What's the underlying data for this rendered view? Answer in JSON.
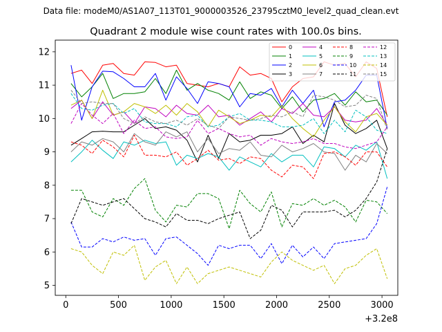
{
  "chart_data": {
    "type": "line",
    "suptitle": "Data file: modeM0/AS1A07_113T01_9000003526_23795cztM0_level2_quad_clean.evt",
    "title": "Quadrant 2 module wise count rates with 100.0s bins.",
    "xlabel": "",
    "ylabel": "",
    "x_offset_label": "+3.2e8",
    "xlim": [
      -100,
      3150
    ],
    "ylim": [
      4.7,
      12.35
    ],
    "x_ticks": [
      0,
      500,
      1000,
      1500,
      2000,
      2500,
      3000
    ],
    "y_ticks": [
      5,
      6,
      7,
      8,
      9,
      10,
      11,
      12
    ],
    "x": [
      50,
      150,
      250,
      350,
      450,
      550,
      650,
      750,
      850,
      950,
      1050,
      1150,
      1250,
      1350,
      1450,
      1550,
      1650,
      1750,
      1850,
      1950,
      2050,
      2150,
      2250,
      2350,
      2450,
      2550,
      2650,
      2750,
      2850,
      2950,
      3050
    ],
    "series": [
      {
        "name": "0",
        "color": "#ff0000",
        "dash": "solid",
        "values": [
          11.35,
          11.45,
          11.05,
          11.6,
          11.65,
          11.35,
          11.3,
          11.7,
          11.68,
          11.55,
          11.6,
          11.05,
          11.0,
          10.95,
          11.05,
          10.95,
          11.55,
          11.3,
          11.35,
          11.2,
          10.5,
          10.95,
          11.2,
          11.25,
          11.7,
          11.6,
          11.65,
          11.25,
          11.7,
          11.5,
          10.05
        ]
      },
      {
        "name": "1",
        "color": "#008000",
        "dash": "solid",
        "values": [
          11.05,
          10.65,
          10.95,
          11.35,
          10.6,
          10.75,
          10.75,
          10.8,
          11.2,
          10.75,
          11.45,
          10.85,
          11.05,
          10.85,
          10.75,
          10.55,
          11.1,
          10.6,
          10.8,
          10.7,
          10.3,
          10.65,
          10.2,
          10.55,
          10.6,
          10.75,
          10.4,
          10.8,
          10.5,
          10.55,
          10.1
        ]
      },
      {
        "name": "2",
        "color": "#0000ff",
        "dash": "solid",
        "values": [
          11.6,
          9.95,
          10.95,
          11.42,
          11.4,
          11.2,
          10.95,
          10.95,
          11.35,
          10.55,
          11.25,
          10.9,
          10.45,
          11.1,
          11.05,
          10.95,
          10.35,
          10.75,
          10.7,
          10.9,
          10.35,
          10.85,
          10.45,
          10.85,
          9.75,
          10.5,
          10.55,
          10.85,
          11.3,
          11.3,
          9.7
        ]
      },
      {
        "name": "3",
        "color": "#000000",
        "dash": "solid",
        "values": [
          9.2,
          9.4,
          9.6,
          9.62,
          9.6,
          9.6,
          9.8,
          10.0,
          9.7,
          9.75,
          9.65,
          9.35,
          8.7,
          9.5,
          8.8,
          9.55,
          9.3,
          9.35,
          9.5,
          9.5,
          9.55,
          9.75,
          9.25,
          9.5,
          9.3,
          10.45,
          9.8,
          9.55,
          9.7,
          9.95,
          9.1
        ]
      },
      {
        "name": "4",
        "color": "#bf00bf",
        "dash": "solid",
        "values": [
          10.3,
          10.55,
          10.0,
          10.5,
          10.1,
          10.2,
          9.85,
          10.35,
          10.3,
          10.05,
          10.4,
          10.15,
          10.1,
          10.4,
          10.05,
          10.1,
          9.8,
          10.0,
          10.2,
          9.9,
          10.3,
          10.15,
          10.45,
          10.1,
          10.05,
          10.35,
          9.95,
          9.9,
          9.95,
          10.3,
          9.8
        ]
      },
      {
        "name": "5",
        "color": "#00bfbf",
        "dash": "solid",
        "values": [
          8.7,
          9.0,
          9.35,
          9.05,
          8.8,
          9.3,
          9.2,
          9.35,
          9.25,
          9.3,
          8.6,
          8.9,
          8.8,
          8.95,
          8.85,
          8.45,
          8.85,
          8.7,
          8.55,
          8.95,
          8.7,
          8.9,
          8.9,
          8.55,
          9.15,
          9.1,
          8.85,
          9.2,
          9.05,
          9.3,
          8.2
        ]
      },
      {
        "name": "6",
        "color": "#bfbf00",
        "dash": "solid",
        "values": [
          10.4,
          10.55,
          10.0,
          10.85,
          10.1,
          10.2,
          10.45,
          10.35,
          10.15,
          10.4,
          10.1,
          10.45,
          10.2,
          9.75,
          10.25,
          10.05,
          9.85,
          9.95,
          10.1,
          10.05,
          10.4,
          10.0,
          9.7,
          9.45,
          9.95,
          10.35,
          9.9,
          9.6,
          10.05,
          10.15,
          9.8
        ]
      },
      {
        "name": "7",
        "color": "#808080",
        "dash": "solid",
        "values": [
          9.0,
          9.3,
          9.2,
          9.4,
          9.3,
          9.0,
          9.55,
          9.3,
          9.2,
          9.6,
          9.45,
          9.6,
          9.0,
          9.4,
          8.95,
          9.1,
          9.05,
          9.3,
          8.9,
          8.85,
          9.2,
          9.0,
          9.1,
          9.25,
          9.0,
          8.95,
          8.45,
          8.9,
          8.7,
          9.25,
          8.95
        ]
      },
      {
        "name": "8",
        "color": "#ff0000",
        "dash": "dashed",
        "values": [
          9.3,
          9.2,
          8.95,
          9.35,
          9.15,
          8.85,
          9.5,
          8.9,
          8.9,
          8.85,
          9.0,
          8.6,
          8.8,
          9.05,
          8.75,
          8.8,
          8.65,
          8.85,
          8.8,
          8.45,
          8.25,
          8.6,
          8.55,
          8.2,
          8.95,
          9.0,
          8.85,
          8.6,
          9.0,
          9.0,
          8.55
        ]
      },
      {
        "name": "9",
        "color": "#008000",
        "dash": "dashed",
        "values": [
          7.85,
          7.85,
          7.2,
          7.05,
          7.6,
          7.4,
          7.9,
          8.2,
          7.25,
          6.9,
          7.4,
          7.35,
          7.75,
          7.75,
          7.6,
          6.7,
          7.85,
          7.45,
          7.2,
          7.8,
          6.75,
          7.45,
          7.4,
          7.6,
          7.4,
          7.55,
          7.35,
          6.9,
          7.55,
          7.5,
          7.15
        ]
      },
      {
        "name": "10",
        "color": "#0000ff",
        "dash": "dashed",
        "values": [
          6.9,
          6.15,
          6.15,
          6.4,
          6.3,
          6.45,
          6.35,
          6.4,
          5.9,
          6.4,
          6.45,
          6.2,
          5.95,
          5.6,
          6.2,
          6.1,
          6.2,
          6.2,
          5.8,
          6.25,
          5.65,
          6.2,
          5.85,
          6.15,
          5.8,
          6.25,
          6.3,
          6.35,
          6.4,
          6.85,
          7.95
        ]
      },
      {
        "name": "11",
        "color": "#000000",
        "dash": "dashed",
        "values": [
          6.85,
          7.6,
          7.5,
          7.4,
          7.5,
          7.6,
          7.3,
          7.0,
          6.9,
          6.75,
          7.15,
          6.95,
          6.95,
          6.85,
          7.0,
          7.1,
          7.2,
          6.4,
          6.65,
          7.4,
          7.25,
          6.75,
          7.2,
          7.2,
          7.2,
          7.25,
          7.05,
          7.25,
          7.6,
          8.1,
          9.1
        ]
      },
      {
        "name": "12",
        "color": "#bf00bf",
        "dash": "dashed",
        "values": [
          9.85,
          10.45,
          10.1,
          9.85,
          10.15,
          9.55,
          9.95,
          9.7,
          9.75,
          9.45,
          9.4,
          9.45,
          9.95,
          9.55,
          9.7,
          9.55,
          9.45,
          9.5,
          9.2,
          9.4,
          9.3,
          9.25,
          9.3,
          9.4,
          9.25,
          9.25,
          9.15,
          9.1,
          9.2,
          9.3,
          9.75
        ]
      },
      {
        "name": "13",
        "color": "#00bfbf",
        "dash": "dashed",
        "values": [
          10.75,
          10.3,
          10.25,
          10.4,
          10.45,
          10.15,
          10.3,
          9.9,
          9.85,
          9.85,
          9.75,
          10.05,
          10.1,
          9.75,
          9.8,
          10.05,
          10.15,
          9.95,
          9.95,
          9.9,
          9.75,
          9.75,
          9.8,
          10.0,
          9.55,
          9.95,
          9.6,
          10.25,
          10.05,
          9.65,
          9.55
        ]
      },
      {
        "name": "14",
        "color": "#bfbf00",
        "dash": "dashed",
        "values": [
          6.1,
          6.0,
          5.6,
          5.35,
          6.0,
          5.9,
          6.2,
          5.15,
          5.55,
          5.75,
          5.05,
          5.55,
          5.05,
          5.35,
          5.45,
          5.55,
          5.45,
          5.35,
          5.25,
          5.7,
          6.0,
          5.75,
          5.6,
          5.45,
          5.6,
          5.05,
          5.5,
          5.6,
          5.9,
          6.1,
          5.2
        ]
      },
      {
        "name": "15",
        "color": "#808080",
        "dash": "dashed",
        "values": [
          10.85,
          10.45,
          10.5,
          10.45,
          10.45,
          10.0,
          9.85,
          10.05,
          9.9,
          9.85,
          9.95,
          9.8,
          10.0,
          9.8,
          9.7,
          10.05,
          10.0,
          9.95,
          10.0,
          10.1,
          10.05,
          10.2,
          10.05,
          10.7,
          10.65,
          10.55,
          10.35,
          10.4,
          10.7,
          10.6,
          9.65
        ]
      }
    ]
  }
}
